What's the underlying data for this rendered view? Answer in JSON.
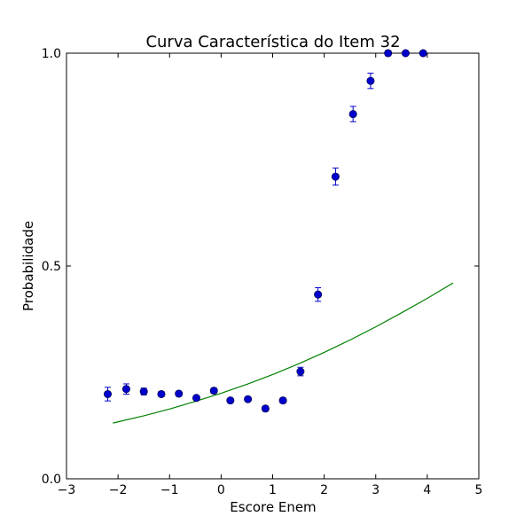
{
  "chart_data": {
    "type": "scatter",
    "title": "Curva Característica do Item 32",
    "xlabel": "Escore Enem",
    "ylabel": "Probabilidade",
    "xlim": [
      -3,
      5
    ],
    "ylim": [
      0.0,
      1.0
    ],
    "xticks": [
      -3,
      -2,
      -1,
      0,
      1,
      2,
      3,
      4,
      5
    ],
    "xtick_labels": [
      "−3",
      "−2",
      "−1",
      "0",
      "1",
      "2",
      "3",
      "4",
      "5"
    ],
    "yticks": [
      0.0,
      0.5,
      1.0
    ],
    "ytick_labels": [
      "0.0",
      "0.5",
      "1.0"
    ],
    "grid": false,
    "series": [
      {
        "kind": "scatter-errorbar",
        "color": "#0000cc",
        "points": [
          {
            "x": -2.2,
            "y": 0.199,
            "err": 0.016
          },
          {
            "x": -1.84,
            "y": 0.211,
            "err": 0.012
          },
          {
            "x": -1.5,
            "y": 0.205,
            "err": 0.008
          },
          {
            "x": -1.16,
            "y": 0.199,
            "err": 0.006
          },
          {
            "x": -0.82,
            "y": 0.2,
            "err": 0.006
          },
          {
            "x": -0.48,
            "y": 0.19,
            "err": 0.005
          },
          {
            "x": -0.14,
            "y": 0.207,
            "err": 0.006
          },
          {
            "x": 0.18,
            "y": 0.184,
            "err": 0.004
          },
          {
            "x": 0.52,
            "y": 0.187,
            "err": 0.005
          },
          {
            "x": 0.86,
            "y": 0.165,
            "err": 0.006
          },
          {
            "x": 1.2,
            "y": 0.184,
            "err": 0.006
          },
          {
            "x": 1.54,
            "y": 0.252,
            "err": 0.01
          },
          {
            "x": 1.88,
            "y": 0.433,
            "err": 0.016
          },
          {
            "x": 2.22,
            "y": 0.71,
            "err": 0.02
          },
          {
            "x": 2.56,
            "y": 0.857,
            "err": 0.018
          },
          {
            "x": 2.9,
            "y": 0.935,
            "err": 0.018
          },
          {
            "x": 3.24,
            "y": 1.0,
            "err": 0.006
          },
          {
            "x": 3.58,
            "y": 1.0,
            "err": 0.004
          },
          {
            "x": 3.92,
            "y": 1.0,
            "err": 0.004
          }
        ]
      },
      {
        "kind": "line",
        "color": "#008000",
        "x": [
          -2.1,
          -1.5,
          -1.0,
          -0.5,
          0.0,
          0.5,
          1.0,
          1.5,
          2.0,
          2.5,
          3.0,
          3.5,
          4.0,
          4.5
        ],
        "y": [
          0.131,
          0.148,
          0.164,
          0.182,
          0.201,
          0.222,
          0.245,
          0.27,
          0.297,
          0.326,
          0.357,
          0.39,
          0.424,
          0.46
        ]
      }
    ]
  }
}
